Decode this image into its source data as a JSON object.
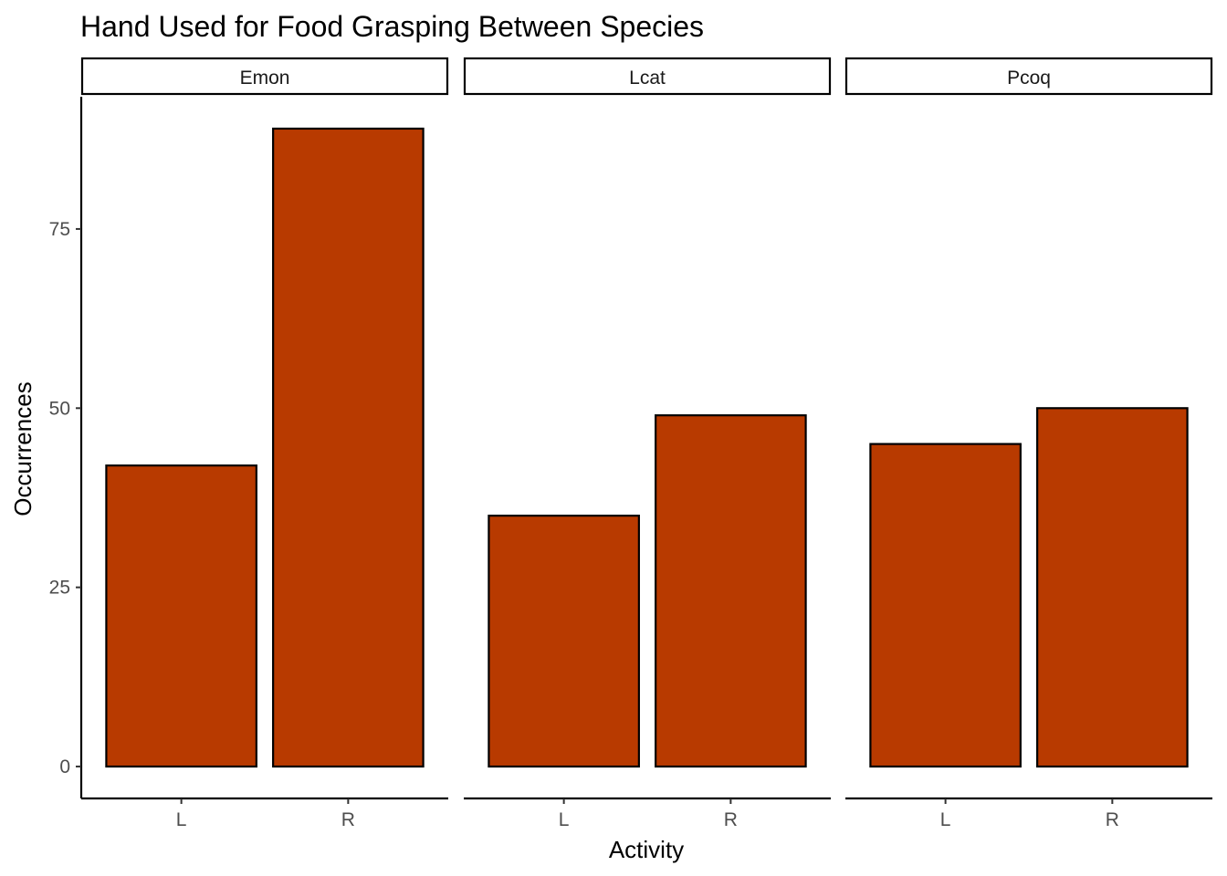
{
  "chart_data": {
    "type": "bar",
    "title": "Hand Used for Food Grasping Between Species",
    "xlabel": "Activity",
    "ylabel": "Occurrences",
    "categories": [
      "L",
      "R"
    ],
    "facets": [
      {
        "name": "Emon",
        "values": [
          42,
          89
        ]
      },
      {
        "name": "Lcat",
        "values": [
          35,
          49
        ]
      },
      {
        "name": "Pcoq",
        "values": [
          45,
          50
        ]
      }
    ],
    "yticks": [
      0,
      25,
      50,
      75
    ],
    "ylim": [
      -4.45,
      93.45
    ],
    "bar_color": "#B83A00",
    "grid": false
  }
}
